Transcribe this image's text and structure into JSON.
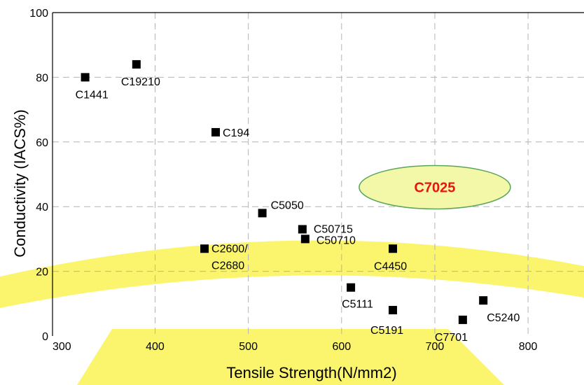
{
  "chart_data": {
    "type": "scatter",
    "xlabel": "Tensile Strength(N/mm2)",
    "ylabel": "Conductivity (IACS%)",
    "xlim": [
      290,
      860
    ],
    "ylim": [
      0,
      100
    ],
    "xticks": [
      300,
      400,
      500,
      600,
      700,
      800
    ],
    "yticks": [
      0,
      20,
      40,
      60,
      80,
      100
    ],
    "grid": true,
    "marker_color": "#000000",
    "points": [
      {
        "label": "C1441",
        "x": 325,
        "y": 80
      },
      {
        "label": "C19210",
        "x": 380,
        "y": 84
      },
      {
        "label": "C194",
        "x": 465,
        "y": 63
      },
      {
        "label": "C5050",
        "x": 515,
        "y": 38
      },
      {
        "label": "C50715",
        "x": 558,
        "y": 33
      },
      {
        "label": "C50710",
        "x": 561,
        "y": 30
      },
      {
        "label": "C2600/\nC2680",
        "label_lines": [
          "C2600/",
          "C2680"
        ],
        "x": 453,
        "y": 27
      },
      {
        "label": "C4450",
        "x": 655,
        "y": 27
      },
      {
        "label": "C5111",
        "x": 610,
        "y": 15
      },
      {
        "label": "C5191",
        "x": 655,
        "y": 8
      },
      {
        "label": "C7701",
        "x": 730,
        "y": 5
      },
      {
        "label": "C5240",
        "x": 752,
        "y": 11
      }
    ],
    "annotations": [
      {
        "text": "C7025",
        "shape": "ellipse",
        "fill": "#f3f8a8",
        "stroke": "#5aa55a",
        "text_color": "#e8150f",
        "x": 700,
        "y": 46
      }
    ],
    "background_band": {
      "color": "#fbf56e"
    }
  }
}
